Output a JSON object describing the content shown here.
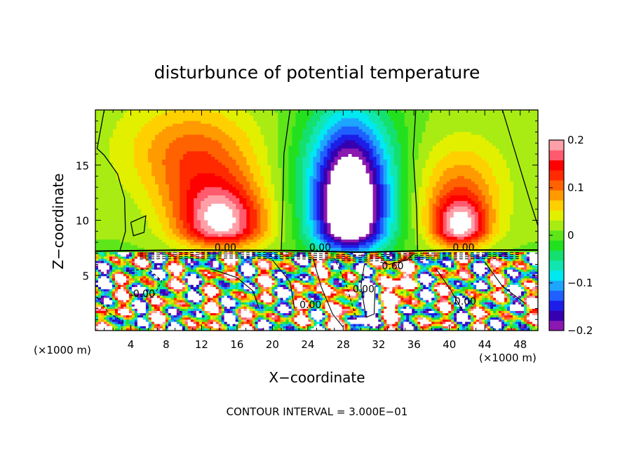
{
  "chart_data": {
    "type": "heatmap",
    "title": "disturbunce of potential temperature",
    "xlabel": "X−coordinate",
    "ylabel": "Z−coordinate",
    "x_unit_left": "(×1000 m)",
    "x_unit_right": "(×1000 m)",
    "xlim": [
      0,
      50
    ],
    "ylim": [
      0,
      20
    ],
    "x_ticks": [
      4,
      8,
      12,
      16,
      20,
      24,
      28,
      32,
      36,
      40,
      44,
      48
    ],
    "y_ticks": [
      5,
      10,
      15
    ],
    "colorbar": {
      "range": [
        -0.2,
        0.2
      ],
      "tick_values": [
        0.2,
        0.1,
        0,
        -0.1,
        -0.2
      ],
      "tick_labels": [
        "0.2",
        "0.1",
        "0",
        "−0.1",
        "−0.2"
      ],
      "colors": [
        "#8b18b0",
        "#3600b0",
        "#1c1ee8",
        "#1f60ff",
        "#1ea6ff",
        "#00e8f0",
        "#12e6b0",
        "#14e070",
        "#22e01e",
        "#5ee61a",
        "#a8ec14",
        "#e2f000",
        "#ffd000",
        "#ff9a00",
        "#ff6200",
        "#ff2a00",
        "#ff0000",
        "#ff5a6e",
        "#ffa0a8"
      ]
    },
    "contour_labels": [
      {
        "text": "0.00",
        "x": 14.7,
        "z": 7.5
      },
      {
        "text": "0.00",
        "x": 25.4,
        "z": 7.5
      },
      {
        "text": "0.60",
        "x": 33.6,
        "z": 5.8
      },
      {
        "text": "0.00",
        "x": 41.6,
        "z": 7.5
      },
      {
        "text": "0.00",
        "x": 5.5,
        "z": 3.3
      },
      {
        "text": "0.00",
        "x": 24.3,
        "z": 2.3
      },
      {
        "text": "0.00",
        "x": 30.3,
        "z": 3.7
      },
      {
        "text": "0.00",
        "x": 41.8,
        "z": 2.6
      }
    ],
    "annotation": "CONTOUR INTERVAL = 3.000E−01"
  }
}
